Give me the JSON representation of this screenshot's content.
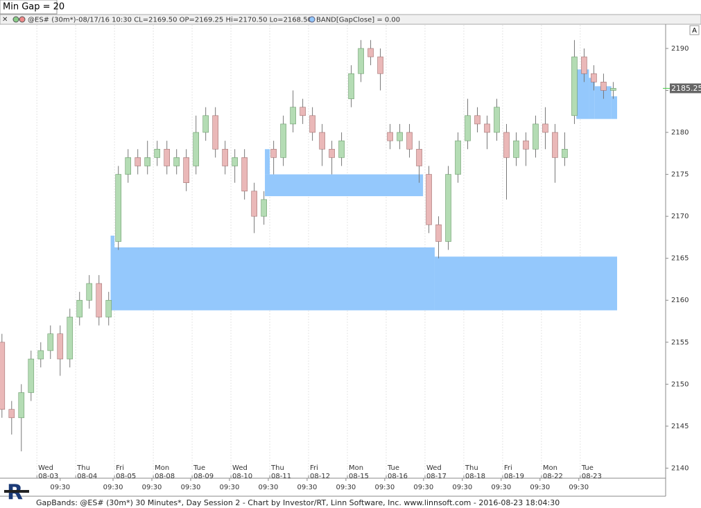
{
  "setting_label": "Min Gap = 20",
  "info": {
    "symbol": "@ES# (30m*)-08/17/16 10:30 CL=2169.50 OP=2169.25 Hi=2170.50 Lo=2168.50",
    "indicator": "BAND[GapClose] = 0.00"
  },
  "scale_button": "A",
  "footer": "GapBands: @ES# (30m*) 30 Minutes*, Day Session 2 - Chart by Investor/RT, Linn Software, Inc. www.linnsoft.com - 2016-08-23 18:04:30",
  "chart_data": {
    "type": "candlestick",
    "open": [
      2155,
      2147,
      2146,
      2149,
      2153,
      2154,
      2156,
      2153,
      2158,
      2160,
      2162,
      2158,
      2167,
      2175,
      2177,
      2176,
      2177,
      2178,
      2176,
      2177,
      2176,
      2180,
      2182,
      2178,
      2176,
      2177,
      2173,
      2170,
      2178,
      2177,
      2181,
      2183,
      2182,
      2180,
      2178,
      2177,
      2184,
      2187,
      2190,
      2189,
      2180,
      2179,
      2180,
      2178,
      2175,
      2169,
      2167,
      2175,
      2179,
      2182,
      2181,
      2180,
      2180,
      2177,
      2179,
      2178,
      2181,
      2180,
      2177,
      2182,
      2189,
      2187,
      2186,
      2185
    ],
    "high": [
      2156,
      2148,
      2150,
      2154,
      2155,
      2157,
      2157,
      2159,
      2161,
      2163,
      2163,
      2161,
      2176,
      2178,
      2178,
      2179,
      2179,
      2179,
      2178,
      2178,
      2182,
      2183,
      2183,
      2179,
      2178,
      2178,
      2174,
      2173,
      2179,
      2182,
      2185,
      2184,
      2183,
      2181,
      2179,
      2180,
      2188,
      2191,
      2191,
      2190,
      2181,
      2181,
      2181,
      2179,
      2176,
      2170,
      2176,
      2180,
      2184,
      2183,
      2182,
      2184,
      2181,
      2180,
      2180,
      2182,
      2183,
      2181,
      2180,
      2191,
      2190,
      2188,
      2187,
      2186
    ],
    "low": [
      2146,
      2144,
      2142,
      2148,
      2152,
      2153,
      2151,
      2152,
      2157,
      2159,
      2157,
      2157,
      2166,
      2174,
      2175,
      2175,
      2176,
      2175,
      2175,
      2173,
      2175,
      2179,
      2177,
      2175,
      2174,
      2172,
      2168,
      2169,
      2175,
      2176,
      2180,
      2181,
      2179,
      2176,
      2175,
      2176,
      2183,
      2186,
      2188,
      2185,
      2178,
      2178,
      2177,
      2174,
      2168,
      2165,
      2166,
      2174,
      2178,
      2180,
      2178,
      2179,
      2172,
      2176,
      2176,
      2177,
      2178,
      2174,
      2176,
      2181,
      2186,
      2185,
      2184,
      2184
    ],
    "close": [
      2147,
      2146,
      2149,
      2153,
      2154,
      2156,
      2153,
      2158,
      2160,
      2162,
      2158,
      2160,
      2175,
      2177,
      2176,
      2177,
      2178,
      2176,
      2177,
      2174,
      2180,
      2182,
      2178,
      2176,
      2177,
      2173,
      2170,
      2172,
      2177,
      2181,
      2183,
      2182,
      2180,
      2178,
      2177,
      2179,
      2187,
      2190,
      2189,
      2187,
      2179,
      2180,
      2178,
      2176,
      2169,
      2167,
      2175,
      2179,
      2182,
      2181,
      2180,
      2183,
      2177,
      2179,
      2178,
      2181,
      2180,
      2177,
      2178,
      2189,
      2187,
      2186,
      2185,
      2185.25
    ],
    "up_color": "#b4dcb4",
    "down_color": "#eab8b8",
    "band_color": "#94c8fc",
    "bands": [
      {
        "x": [
          11.2,
          44.6
        ],
        "y": [
          2158.8,
          2166.3
        ]
      },
      {
        "x": [
          11.2,
          11.6
        ],
        "y": [
          2166.3,
          2167.7
        ]
      },
      {
        "x": [
          44.6,
          63.4
        ],
        "y": [
          2158.8,
          2165.2
        ]
      },
      {
        "x": [
          27.1,
          43.4
        ],
        "y": [
          2172.4,
          2175.0
        ]
      },
      {
        "x": [
          27.1,
          27.6
        ],
        "y": [
          2175.0,
          2178.0
        ]
      },
      {
        "x": [
          59.2,
          60.5
        ],
        "y": [
          2181.6,
          2187.5
        ]
      },
      {
        "x": [
          60.5,
          61.1
        ],
        "y": [
          2181.6,
          2186.5
        ]
      },
      {
        "x": [
          61.1,
          62.8
        ],
        "y": [
          2181.6,
          2185.5
        ]
      },
      {
        "x": [
          62.8,
          63.4
        ],
        "y": [
          2181.6,
          2184.3
        ]
      }
    ],
    "last_price": {
      "value": 2185.25,
      "label": "2185.25"
    },
    "xlim": [
      -0.2,
      68.4
    ],
    "ylim": [
      2138.8,
      2192.8
    ],
    "yticks": [
      2140,
      2145,
      2150,
      2155,
      2160,
      2165,
      2170,
      2175,
      2180,
      2185,
      2190
    ],
    "xticks": [
      {
        "value": 3.6,
        "label": "Wed\n08-03"
      },
      {
        "value": 7.6,
        "label": "Thu\n08-04"
      },
      {
        "value": 11.6,
        "label": "Fri\n08-05"
      },
      {
        "value": 15.6,
        "label": "Mon\n08-08"
      },
      {
        "value": 19.6,
        "label": "Tue\n08-09"
      },
      {
        "value": 23.6,
        "label": "Wed\n08-10"
      },
      {
        "value": 27.6,
        "label": "Thu\n08-11"
      },
      {
        "value": 31.6,
        "label": "Fri\n08-12"
      },
      {
        "value": 35.6,
        "label": "Mon\n08-15"
      },
      {
        "value": 39.6,
        "label": "Tue\n08-16"
      },
      {
        "value": 43.6,
        "label": "Wed\n08-17"
      },
      {
        "value": 47.6,
        "label": "Thu\n08-18"
      },
      {
        "value": 51.6,
        "label": "Fri\n08-19"
      },
      {
        "value": 55.6,
        "label": "Mon\n08-22"
      },
      {
        "value": 59.6,
        "label": "Tue\n08-23"
      }
    ],
    "x2ticks": [
      {
        "value": 6.0,
        "label": "09:30"
      },
      {
        "value": 11.45,
        "label": "09:30"
      },
      {
        "value": 15.45,
        "label": "09:30"
      },
      {
        "value": 19.45,
        "label": "09:30"
      },
      {
        "value": 23.45,
        "label": "09:30"
      },
      {
        "value": 27.45,
        "label": "09:30"
      },
      {
        "value": 31.45,
        "label": "09:30"
      },
      {
        "value": 35.45,
        "label": "09:30"
      },
      {
        "value": 39.45,
        "label": "09:30"
      },
      {
        "value": 43.45,
        "label": "09:30"
      },
      {
        "value": 47.45,
        "label": "09:30"
      },
      {
        "value": 51.45,
        "label": "09:30"
      },
      {
        "value": 55.45,
        "label": "09:30"
      },
      {
        "value": 59.45,
        "label": "09:30"
      }
    ],
    "grid": true
  }
}
